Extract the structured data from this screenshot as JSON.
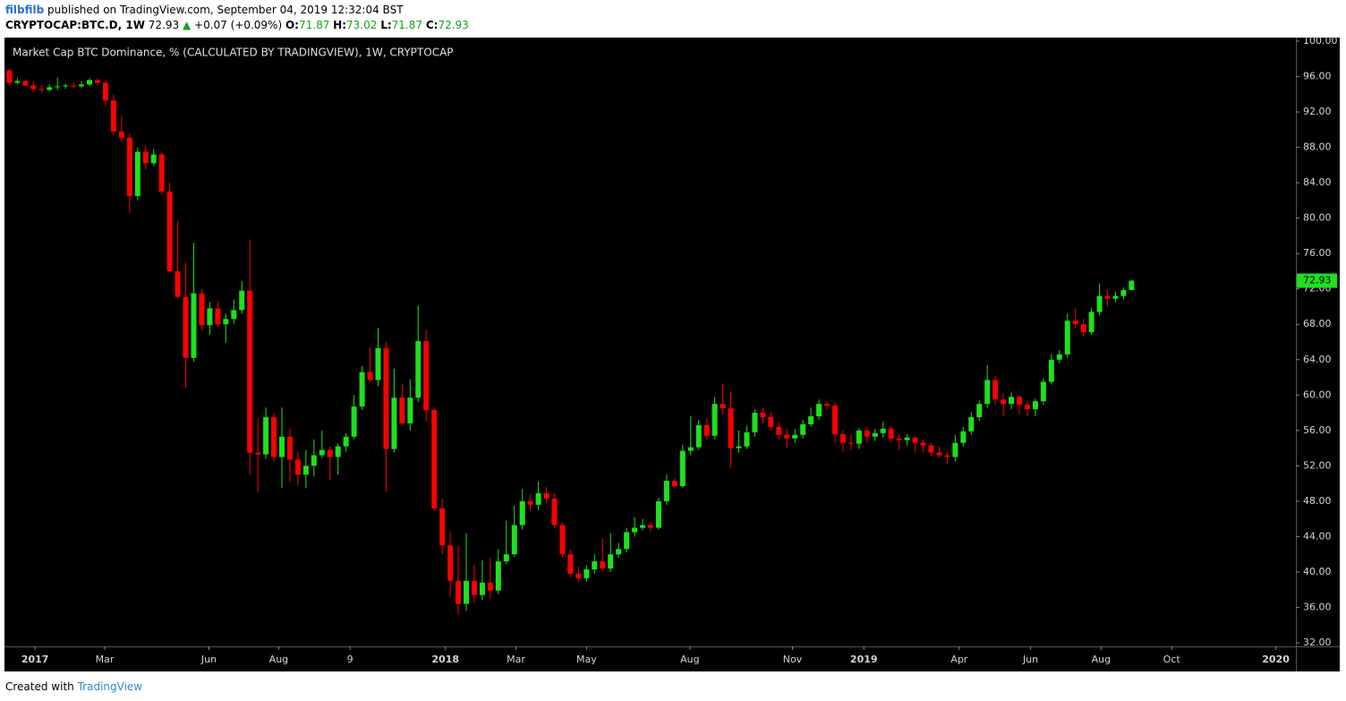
{
  "header": {
    "user": "filbfilb",
    "published": "published on TradingView.com, September 04, 2019 12:32:04 BST",
    "symbol": "CRYPTOCAP:BTC.D, 1W",
    "last": "72.93",
    "change": "+0.07 (+0.09%)",
    "ohlc": [
      {
        "label": "O:",
        "value": "71.87"
      },
      {
        "label": "H:",
        "value": "73.02"
      },
      {
        "label": "L:",
        "value": "71.87"
      },
      {
        "label": "C:",
        "value": "72.93"
      }
    ]
  },
  "footer": {
    "created": "Created with",
    "brand": "TradingView"
  },
  "chart_data": {
    "type": "candlestick",
    "title": "Market Cap BTC Dominance, % (CALCULATED BY TRADINGVIEW), 1W, CRYPTOCAP",
    "up_color": "#1ee01e",
    "down_color": "#ff0000",
    "background": "#000000",
    "ylim": [
      32,
      100
    ],
    "yticks": [
      {
        "value": 32,
        "label": "32.00"
      },
      {
        "value": 36,
        "label": "36.00"
      },
      {
        "value": 40,
        "label": "40.00"
      },
      {
        "value": 44,
        "label": "44.00"
      },
      {
        "value": 48,
        "label": "48.00"
      },
      {
        "value": 52,
        "label": "52.00"
      },
      {
        "value": 56,
        "label": "56.00"
      },
      {
        "value": 60,
        "label": "60.00"
      },
      {
        "value": 64,
        "label": "64.00"
      },
      {
        "value": 68,
        "label": "68.00"
      },
      {
        "value": 72,
        "label": "72.00"
      },
      {
        "value": 76,
        "label": "76.00"
      },
      {
        "value": 80,
        "label": "80.00"
      },
      {
        "value": 84,
        "label": "84.00"
      },
      {
        "value": 88,
        "label": "88.00"
      },
      {
        "value": 92,
        "label": "92.00"
      },
      {
        "value": 96,
        "label": "96.00"
      },
      {
        "value": 100,
        "label": "100.00"
      }
    ],
    "xlim": [
      -0.5,
      160.5
    ],
    "xticks": [
      {
        "value": 3.2,
        "label": "2017"
      },
      {
        "value": 11.9,
        "label": "Mar"
      },
      {
        "value": 24.9,
        "label": "Jun"
      },
      {
        "value": 33.6,
        "label": "Aug"
      },
      {
        "value": 42.5,
        "label": "9"
      },
      {
        "value": 54.4,
        "label": "2018"
      },
      {
        "value": 63.2,
        "label": "Mar"
      },
      {
        "value": 72.0,
        "label": "May"
      },
      {
        "value": 84.9,
        "label": "Aug"
      },
      {
        "value": 97.7,
        "label": "Nov"
      },
      {
        "value": 106.6,
        "label": "2019"
      },
      {
        "value": 118.5,
        "label": "Apr"
      },
      {
        "value": 127.4,
        "label": "Jun"
      },
      {
        "value": 136.2,
        "label": "Aug"
      },
      {
        "value": 145.0,
        "label": "Oct"
      },
      {
        "value": 158.0,
        "label": "2020"
      }
    ],
    "ohlc": [
      [
        96.7,
        96.9,
        95.0,
        95.3
      ],
      [
        95.3,
        95.8,
        95.1,
        95.5
      ],
      [
        95.5,
        95.6,
        94.9,
        95.0
      ],
      [
        95.0,
        95.5,
        94.3,
        94.6
      ],
      [
        94.6,
        95.0,
        94.2,
        94.5
      ],
      [
        94.5,
        95.1,
        94.3,
        94.8
      ],
      [
        94.8,
        95.9,
        94.5,
        94.9
      ],
      [
        94.9,
        95.2,
        94.6,
        95.0
      ],
      [
        95.0,
        95.4,
        94.7,
        94.9
      ],
      [
        94.9,
        95.5,
        94.7,
        95.1
      ],
      [
        95.1,
        95.8,
        94.9,
        95.6
      ],
      [
        95.6,
        95.8,
        95.0,
        95.3
      ],
      [
        95.3,
        95.5,
        92.6,
        93.3
      ],
      [
        93.3,
        94.0,
        89.4,
        89.8
      ],
      [
        89.8,
        91.6,
        88.6,
        89.1
      ],
      [
        89.1,
        89.6,
        80.6,
        82.5
      ],
      [
        82.5,
        88.0,
        82.0,
        87.5
      ],
      [
        87.5,
        88.2,
        85.5,
        86.2
      ],
      [
        86.2,
        87.8,
        85.9,
        87.2
      ],
      [
        87.2,
        87.4,
        82.7,
        83.0
      ],
      [
        83.0,
        84.0,
        73.8,
        74.0
      ],
      [
        74.0,
        79.6,
        70.9,
        71.1
      ],
      [
        71.1,
        75.0,
        60.8,
        64.2
      ],
      [
        64.2,
        77.2,
        63.8,
        71.5
      ],
      [
        71.5,
        72.0,
        67.3,
        67.9
      ],
      [
        67.9,
        70.5,
        66.8,
        69.8
      ],
      [
        69.8,
        70.6,
        67.7,
        68.0
      ],
      [
        68.0,
        69.2,
        65.9,
        68.6
      ],
      [
        68.6,
        70.8,
        68.0,
        69.6
      ],
      [
        69.6,
        72.9,
        69.2,
        71.8
      ],
      [
        71.8,
        77.6,
        51.0,
        53.5
      ],
      [
        53.5,
        57.4,
        49.0,
        53.3
      ],
      [
        53.3,
        58.6,
        52.8,
        57.5
      ],
      [
        57.5,
        58.0,
        52.5,
        53.0
      ],
      [
        53.0,
        58.6,
        49.5,
        55.3
      ],
      [
        55.3,
        56.2,
        50.2,
        52.7
      ],
      [
        52.7,
        53.6,
        49.8,
        51.0
      ],
      [
        51.0,
        53.8,
        49.5,
        52.0
      ],
      [
        52.0,
        55.0,
        50.8,
        53.2
      ],
      [
        53.2,
        56.0,
        52.9,
        53.8
      ],
      [
        53.8,
        54.2,
        50.4,
        53.0
      ],
      [
        53.0,
        54.5,
        51.0,
        54.2
      ],
      [
        54.2,
        55.7,
        53.6,
        55.3
      ],
      [
        55.3,
        60.0,
        55.0,
        58.7
      ],
      [
        58.7,
        63.3,
        58.3,
        62.6
      ],
      [
        62.6,
        65.4,
        61.5,
        61.7
      ],
      [
        61.7,
        67.6,
        61.0,
        65.3
      ],
      [
        65.3,
        66.0,
        49.0,
        53.9
      ],
      [
        53.9,
        63.0,
        53.5,
        59.7
      ],
      [
        59.7,
        61.2,
        56.6,
        56.8
      ],
      [
        56.8,
        61.8,
        56.0,
        59.7
      ],
      [
        59.7,
        70.1,
        59.2,
        66.1
      ],
      [
        66.1,
        67.4,
        57.0,
        58.3
      ],
      [
        58.3,
        58.6,
        46.9,
        47.2
      ],
      [
        47.2,
        48.3,
        42.0,
        43.0
      ],
      [
        43.0,
        44.6,
        37.2,
        39.0
      ],
      [
        39.0,
        43.0,
        35.2,
        36.4
      ],
      [
        36.4,
        44.4,
        35.6,
        39.0
      ],
      [
        39.0,
        40.8,
        36.5,
        37.4
      ],
      [
        37.4,
        41.3,
        36.8,
        38.8
      ],
      [
        38.8,
        41.6,
        37.0,
        37.9
      ],
      [
        37.9,
        42.6,
        37.5,
        41.2
      ],
      [
        41.2,
        45.8,
        40.9,
        42.0
      ],
      [
        42.0,
        47.5,
        41.7,
        45.3
      ],
      [
        45.3,
        49.4,
        44.8,
        48.0
      ],
      [
        48.0,
        48.8,
        46.9,
        47.6
      ],
      [
        47.6,
        50.2,
        47.0,
        48.9
      ],
      [
        48.9,
        49.6,
        47.8,
        48.3
      ],
      [
        48.3,
        48.9,
        44.9,
        45.3
      ],
      [
        45.3,
        45.6,
        41.6,
        42.0
      ],
      [
        42.0,
        42.5,
        39.4,
        39.8
      ],
      [
        39.8,
        40.6,
        38.8,
        39.3
      ],
      [
        39.3,
        40.8,
        38.9,
        40.3
      ],
      [
        40.3,
        42.0,
        39.8,
        41.2
      ],
      [
        41.2,
        43.8,
        40.0,
        40.4
      ],
      [
        40.4,
        44.4,
        40.0,
        42.0
      ],
      [
        42.0,
        43.3,
        41.6,
        42.6
      ],
      [
        42.6,
        45.0,
        42.2,
        44.5
      ],
      [
        44.5,
        46.2,
        44.0,
        45.0
      ],
      [
        45.0,
        46.0,
        44.7,
        45.3
      ],
      [
        45.3,
        45.6,
        44.6,
        45.0
      ],
      [
        45.0,
        48.4,
        44.8,
        48.0
      ],
      [
        48.0,
        51.0,
        47.6,
        50.3
      ],
      [
        50.3,
        50.6,
        49.4,
        49.7
      ],
      [
        49.7,
        54.4,
        49.5,
        53.7
      ],
      [
        53.7,
        57.6,
        53.2,
        54.1
      ],
      [
        54.1,
        57.2,
        53.8,
        56.6
      ],
      [
        56.6,
        57.4,
        55.0,
        55.4
      ],
      [
        55.4,
        59.8,
        55.0,
        59.0
      ],
      [
        59.0,
        61.3,
        57.8,
        58.5
      ],
      [
        58.5,
        60.4,
        51.8,
        54.0
      ],
      [
        54.0,
        56.0,
        53.5,
        54.2
      ],
      [
        54.2,
        56.5,
        53.9,
        55.8
      ],
      [
        55.8,
        58.4,
        55.3,
        58.0
      ],
      [
        58.0,
        58.6,
        56.8,
        57.5
      ],
      [
        57.5,
        58.1,
        56.0,
        56.4
      ],
      [
        56.4,
        56.9,
        55.0,
        55.5
      ],
      [
        55.5,
        56.2,
        54.0,
        55.1
      ],
      [
        55.1,
        56.2,
        54.6,
        55.5
      ],
      [
        55.5,
        57.2,
        55.1,
        56.7
      ],
      [
        56.7,
        58.6,
        56.4,
        57.6
      ],
      [
        57.6,
        59.5,
        57.2,
        59.0
      ],
      [
        59.0,
        59.3,
        58.4,
        58.8
      ],
      [
        58.8,
        59.2,
        54.6,
        55.6
      ],
      [
        55.6,
        56.0,
        53.6,
        54.6
      ],
      [
        54.6,
        55.5,
        53.8,
        54.5
      ],
      [
        54.5,
        56.3,
        53.9,
        56.0
      ],
      [
        56.0,
        56.4,
        54.6,
        55.3
      ],
      [
        55.3,
        56.2,
        54.8,
        55.7
      ],
      [
        55.7,
        57.0,
        55.2,
        56.2
      ],
      [
        56.2,
        56.5,
        54.6,
        55.1
      ],
      [
        55.1,
        55.6,
        53.8,
        54.9
      ],
      [
        54.9,
        55.6,
        54.3,
        55.2
      ],
      [
        55.2,
        55.4,
        53.5,
        54.6
      ],
      [
        54.6,
        55.0,
        53.5,
        54.3
      ],
      [
        54.3,
        54.6,
        53.1,
        53.5
      ],
      [
        53.5,
        54.2,
        52.9,
        53.2
      ],
      [
        53.2,
        53.6,
        52.2,
        53.0
      ],
      [
        53.0,
        55.5,
        52.5,
        54.6
      ],
      [
        54.6,
        56.4,
        54.2,
        55.9
      ],
      [
        55.9,
        58.1,
        55.5,
        57.5
      ],
      [
        57.5,
        59.4,
        57.1,
        59.0
      ],
      [
        59.0,
        63.4,
        58.6,
        61.7
      ],
      [
        61.7,
        62.1,
        58.9,
        59.5
      ],
      [
        59.5,
        60.2,
        57.6,
        59.0
      ],
      [
        59.0,
        60.3,
        58.4,
        59.8
      ],
      [
        59.8,
        60.0,
        57.8,
        58.9
      ],
      [
        58.9,
        59.3,
        57.6,
        58.4
      ],
      [
        58.4,
        59.6,
        57.6,
        59.3
      ],
      [
        59.3,
        61.9,
        58.9,
        61.5
      ],
      [
        61.5,
        64.6,
        61.2,
        64.0
      ],
      [
        64.0,
        65.1,
        63.6,
        64.6
      ],
      [
        64.6,
        69.2,
        64.2,
        68.4
      ],
      [
        68.4,
        69.8,
        67.6,
        68.0
      ],
      [
        68.0,
        68.6,
        66.6,
        67.1
      ],
      [
        67.1,
        69.9,
        66.8,
        69.4
      ],
      [
        69.4,
        72.6,
        69.0,
        71.2
      ],
      [
        71.2,
        71.9,
        70.0,
        70.9
      ],
      [
        70.9,
        71.7,
        70.5,
        71.2
      ],
      [
        71.2,
        72.2,
        70.8,
        71.87
      ],
      [
        71.87,
        73.02,
        71.87,
        72.93
      ]
    ]
  }
}
